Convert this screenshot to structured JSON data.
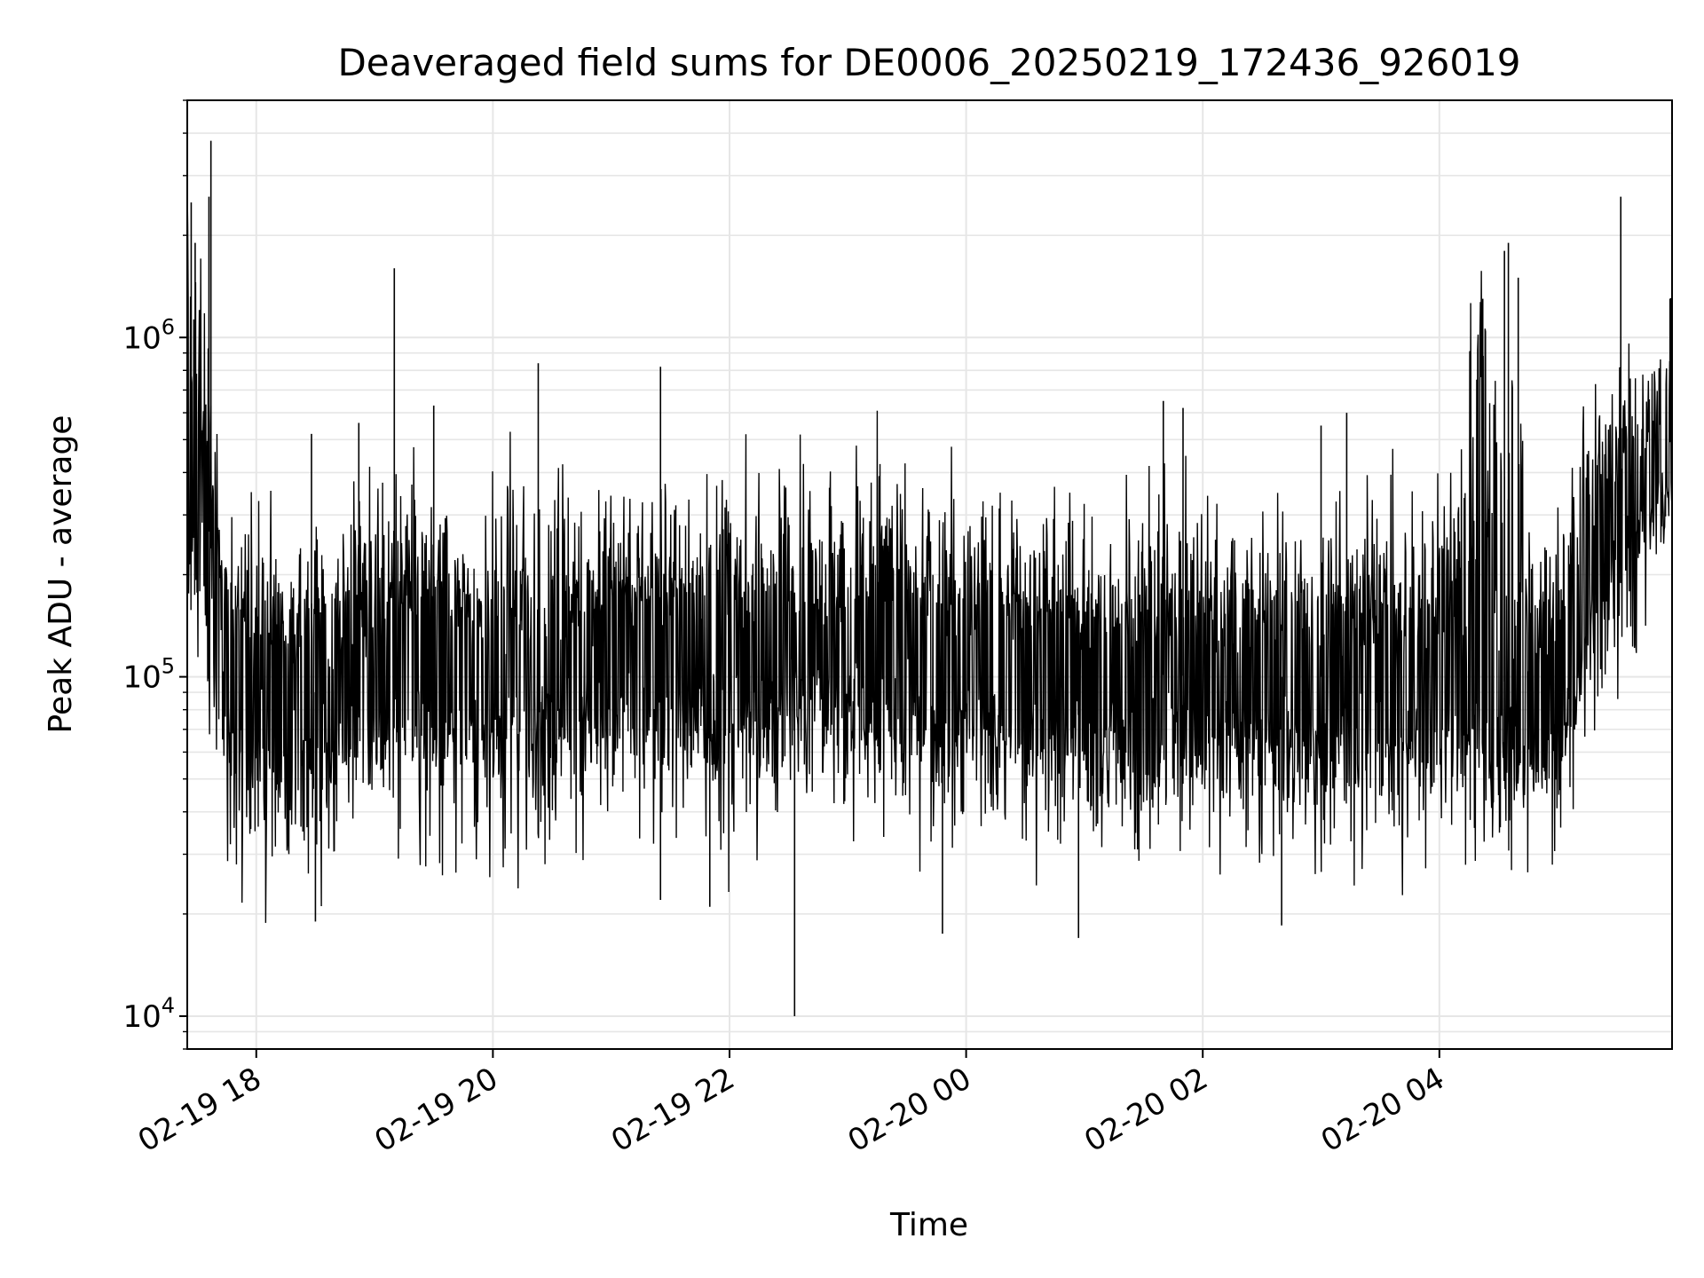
{
  "chart_data": {
    "type": "line",
    "title": "Deaveraged field sums for DE0006_20250219_172436_926019",
    "xlabel": "Time",
    "ylabel": "Peak ADU - average",
    "yscale": "log",
    "ylim": [
      8000,
      5000000
    ],
    "xlim": [
      "2025-02-19 17:25",
      "2025-02-20 05:58"
    ],
    "grid": true,
    "line_color": "#000000",
    "grid_color": "#e6e6e6",
    "x_ticks": [
      {
        "t": "2025-02-19 18:00",
        "label": "02-19 18"
      },
      {
        "t": "2025-02-19 20:00",
        "label": "02-19 20"
      },
      {
        "t": "2025-02-19 22:00",
        "label": "02-19 22"
      },
      {
        "t": "2025-02-20 00:00",
        "label": "02-20 00"
      },
      {
        "t": "2025-02-20 02:00",
        "label": "02-20 02"
      },
      {
        "t": "2025-02-20 04:00",
        "label": "02-20 04"
      }
    ],
    "y_ticks": [
      {
        "value": 10000,
        "base": "10",
        "exp": "4"
      },
      {
        "value": 100000,
        "base": "10",
        "exp": "5"
      },
      {
        "value": 1000000,
        "base": "10",
        "exp": "6"
      }
    ],
    "series": [
      {
        "x": [
          "2025-02-19 17:25",
          "2025-02-19 17:30",
          "2025-02-19 17:35",
          "2025-02-19 17:40",
          "2025-02-19 17:45",
          "2025-02-19 17:50",
          "2025-02-19 17:55",
          "2025-02-19 18:00",
          "2025-02-19 18:10",
          "2025-02-19 18:20",
          "2025-02-19 18:30",
          "2025-02-19 18:45",
          "2025-02-19 19:00",
          "2025-02-19 19:15",
          "2025-02-19 19:30",
          "2025-02-19 19:45",
          "2025-02-19 20:00",
          "2025-02-19 20:30",
          "2025-02-19 21:00",
          "2025-02-19 21:30",
          "2025-02-19 22:00",
          "2025-02-19 22:30",
          "2025-02-19 23:00",
          "2025-02-19 23:30",
          "2025-02-20 00:00",
          "2025-02-20 00:30",
          "2025-02-20 01:00",
          "2025-02-20 01:30",
          "2025-02-20 02:00",
          "2025-02-20 02:30",
          "2025-02-20 03:00",
          "2025-02-20 03:30",
          "2025-02-20 04:00",
          "2025-02-20 04:15",
          "2025-02-20 04:30",
          "2025-02-20 04:45",
          "2025-02-20 05:00",
          "2025-02-20 05:15",
          "2025-02-20 05:30",
          "2025-02-20 05:45",
          "2025-02-20 05:58"
        ],
        "y": [
          400000,
          350000,
          300000,
          170000,
          130000,
          100000,
          90000,
          85000,
          80000,
          85000,
          90000,
          100000,
          110000,
          115000,
          110000,
          105000,
          105000,
          110000,
          115000,
          118000,
          120000,
          125000,
          130000,
          125000,
          115000,
          108000,
          105000,
          102000,
          100000,
          100000,
          100000,
          102000,
          100000,
          95000,
          100000,
          85000,
          90000,
          200000,
          300000,
          400000,
          500000
        ],
        "low": [
          180000,
          150000,
          120000,
          60000,
          40000,
          35000,
          30000,
          30000,
          30000,
          30000,
          35000,
          40000,
          45000,
          45000,
          42000,
          40000,
          40000,
          42000,
          45000,
          45000,
          45000,
          48000,
          50000,
          48000,
          42000,
          40000,
          40000,
          40000,
          38000,
          38000,
          38000,
          40000,
          38000,
          36000,
          38000,
          30000,
          35000,
          90000,
          120000,
          200000,
          250000
        ],
        "high": [
          2500000,
          1500000,
          1000000,
          400000,
          300000,
          250000,
          230000,
          250000,
          230000,
          240000,
          260000,
          280000,
          300000,
          300000,
          280000,
          280000,
          280000,
          300000,
          300000,
          300000,
          310000,
          320000,
          330000,
          310000,
          290000,
          270000,
          260000,
          260000,
          250000,
          250000,
          260000,
          270000,
          260000,
          800000,
          1200000,
          250000,
          230000,
          600000,
          700000,
          800000,
          1000000
        ]
      }
    ],
    "spikes": [
      {
        "t": "2025-02-19 17:37",
        "v": 3800000
      },
      {
        "t": "2025-02-19 17:27",
        "v": 2500000
      },
      {
        "t": "2025-02-19 17:29",
        "v": 1900000
      },
      {
        "t": "2025-02-19 17:36",
        "v": 2600000
      },
      {
        "t": "2025-02-19 19:10",
        "v": 1600000
      },
      {
        "t": "2025-02-19 18:28",
        "v": 520000
      },
      {
        "t": "2025-02-19 18:52",
        "v": 560000
      },
      {
        "t": "2025-02-19 19:30",
        "v": 630000
      },
      {
        "t": "2025-02-19 20:23",
        "v": 840000
      },
      {
        "t": "2025-02-19 21:25",
        "v": 820000
      },
      {
        "t": "2025-02-20 01:40",
        "v": 650000
      },
      {
        "t": "2025-02-20 01:50",
        "v": 620000
      },
      {
        "t": "2025-02-20 03:00",
        "v": 550000
      },
      {
        "t": "2025-02-20 03:13",
        "v": 600000
      },
      {
        "t": "2025-02-20 04:22",
        "v": 1300000
      },
      {
        "t": "2025-02-20 04:33",
        "v": 1800000
      },
      {
        "t": "2025-02-20 04:35",
        "v": 1900000
      },
      {
        "t": "2025-02-20 04:40",
        "v": 1500000
      },
      {
        "t": "2025-02-20 05:32",
        "v": 2600000
      },
      {
        "t": "2025-02-20 05:57",
        "v": 1300000
      },
      {
        "t": "2025-02-19 22:33",
        "v": 10000
      },
      {
        "t": "2025-02-19 23:48",
        "v": 17500
      },
      {
        "t": "2025-02-20 00:57",
        "v": 17000
      },
      {
        "t": "2025-02-20 02:40",
        "v": 18500
      },
      {
        "t": "2025-02-19 18:30",
        "v": 19000
      },
      {
        "t": "2025-02-19 21:25",
        "v": 22000
      },
      {
        "t": "2025-02-19 21:50",
        "v": 21000
      }
    ]
  }
}
